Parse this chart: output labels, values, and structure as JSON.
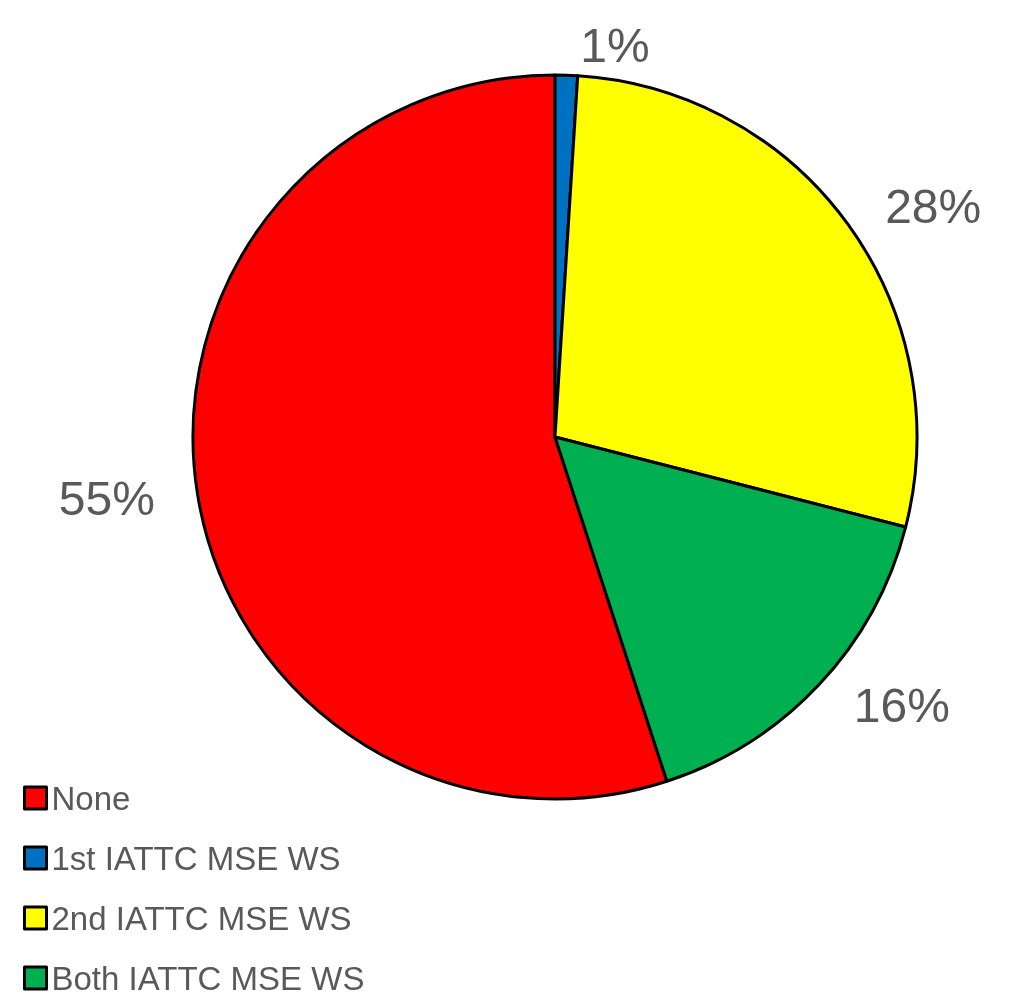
{
  "chart_data": {
    "type": "pie",
    "categories": [
      "None",
      "1st IATTC MSE WS",
      "2nd IATTC MSE WS",
      "Both IATTC MSE WS"
    ],
    "values": [
      55,
      1,
      28,
      16
    ],
    "colors": [
      "#ff0000",
      "#0070c0",
      "#ffff00",
      "#00b050"
    ],
    "value_labels": [
      "55%",
      "1%",
      "28%",
      "16%"
    ],
    "legend": "bottom left"
  }
}
